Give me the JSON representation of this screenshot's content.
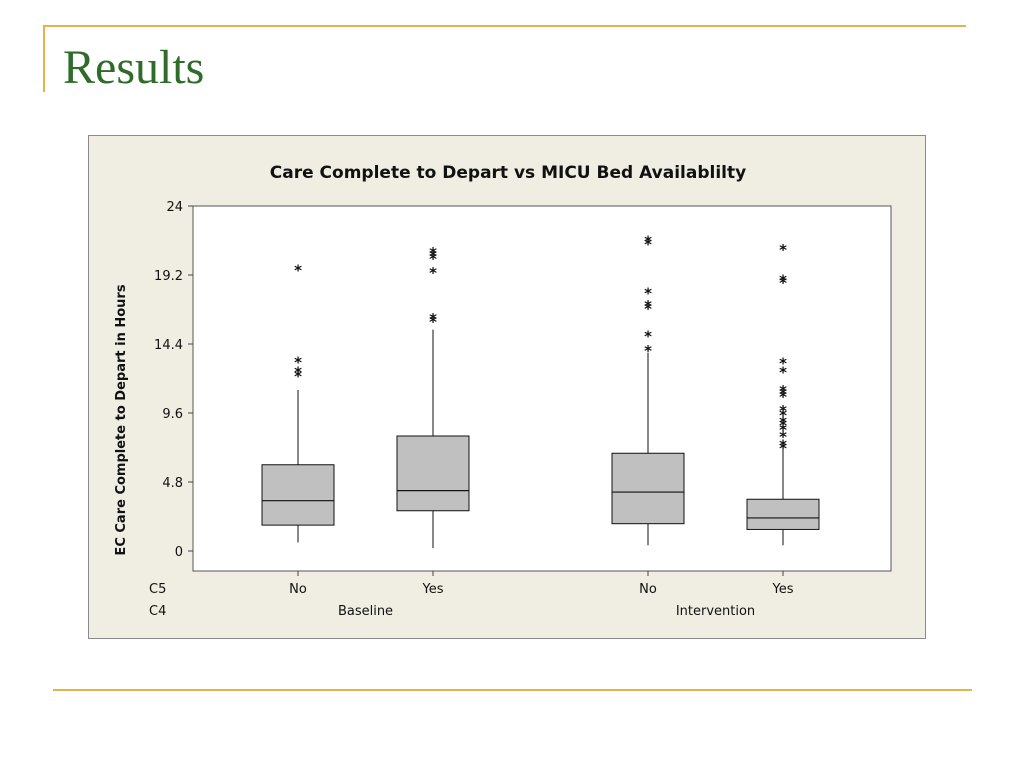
{
  "slide": {
    "title": "Results"
  },
  "colors": {
    "title_text": "#2F6B2A",
    "accent_rule": "#E5B24B",
    "chart_background": "#F0EEE2",
    "box_fill": "#C0C0C0"
  },
  "chart_data": {
    "type": "box",
    "title": "Care Complete to Depart vs MICU Bed Availablilty",
    "ylabel": "EC Care Complete to Depart  in Hours",
    "ylim": [
      0,
      24
    ],
    "yticks": [
      0,
      4.8,
      9.6,
      14.4,
      19.2,
      24
    ],
    "ytick_labels": [
      "0",
      "4.8",
      "9.6",
      "14.4",
      "19.2",
      "24"
    ],
    "grid": false,
    "row_labels": [
      "C5",
      "C4"
    ],
    "groups": [
      {
        "label": "Baseline",
        "categories": [
          "No",
          "Yes"
        ]
      },
      {
        "label": "Intervention",
        "categories": [
          "No",
          "Yes"
        ]
      }
    ],
    "boxes": [
      {
        "group": "Baseline",
        "category": "No",
        "whisker_low": 0.6,
        "q1": 1.8,
        "median": 3.5,
        "q3": 6.0,
        "whisker_high": 11.2,
        "outliers": [
          12.2,
          12.5,
          13.2,
          19.6
        ]
      },
      {
        "group": "Baseline",
        "category": "Yes",
        "whisker_low": 0.2,
        "q1": 2.8,
        "median": 4.2,
        "q3": 8.0,
        "whisker_high": 15.4,
        "outliers": [
          16.0,
          16.2,
          19.4,
          20.4,
          20.6,
          20.8
        ]
      },
      {
        "group": "Intervention",
        "category": "No",
        "whisker_low": 0.4,
        "q1": 1.9,
        "median": 4.1,
        "q3": 6.8,
        "whisker_high": 13.8,
        "outliers": [
          14.0,
          15.0,
          16.9,
          17.1,
          18.0,
          21.4,
          21.6
        ]
      },
      {
        "group": "Intervention",
        "category": "Yes",
        "whisker_low": 0.4,
        "q1": 1.5,
        "median": 2.3,
        "q3": 3.6,
        "whisker_high": 7.2,
        "outliers": [
          7.2,
          7.4,
          8.0,
          8.5,
          8.8,
          9.0,
          9.5,
          9.8,
          10.8,
          11.0,
          11.2,
          12.5,
          13.1,
          18.7,
          18.9,
          21.0
        ]
      }
    ]
  }
}
